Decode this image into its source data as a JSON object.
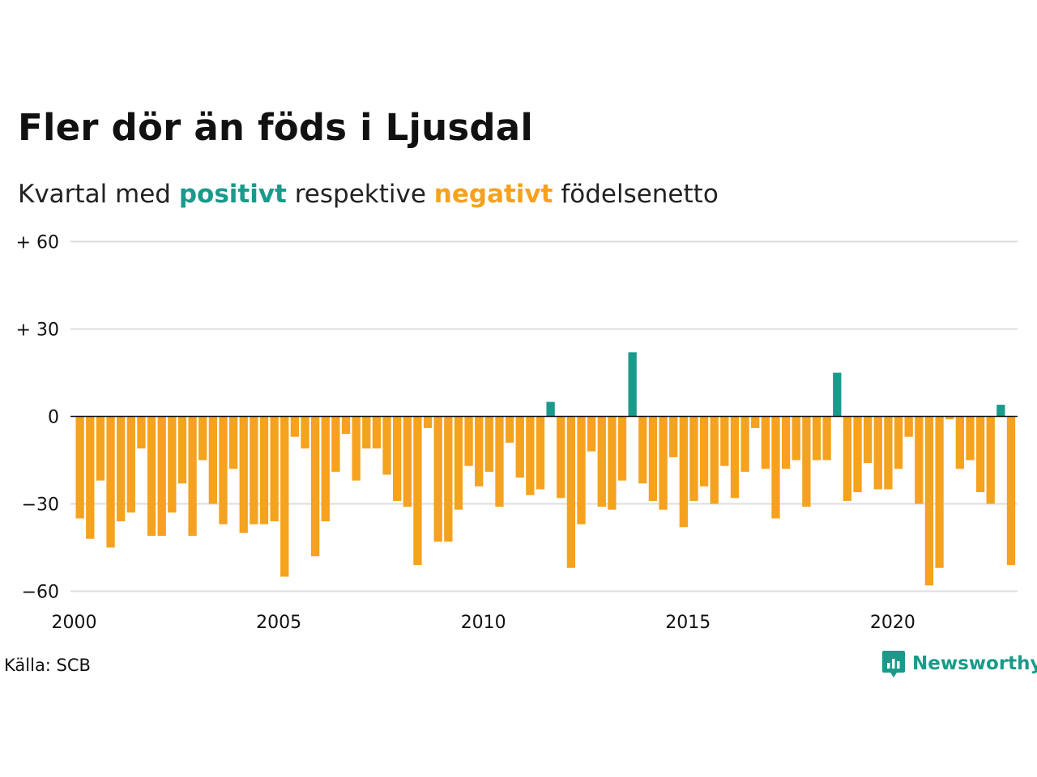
{
  "header": {
    "title": "Fler dör än föds i Ljusdal",
    "subtitle_prefix": "Kvartal med ",
    "subtitle_positive": "positivt",
    "subtitle_middle": " respektive ",
    "subtitle_negative": "negativt",
    "subtitle_suffix": " födelsenetto"
  },
  "footer": {
    "source": "Källa: SCB",
    "brand": "Newsworthy",
    "brand_icon": "newsworthy-logo-icon"
  },
  "colors": {
    "positive": "#1a9a8b",
    "negative": "#f5a21f",
    "grid": "#dddddd",
    "zero_line": "#111111"
  },
  "chart_data": {
    "type": "bar",
    "x_start": "2000 Q1",
    "x_step": "quarter",
    "y_ticks": [
      {
        "value": 60,
        "label": "+ 60"
      },
      {
        "value": 30,
        "label": "+ 30"
      },
      {
        "value": 0,
        "label": "0"
      },
      {
        "value": -30,
        "label": "−30"
      },
      {
        "value": -60,
        "label": "−60"
      }
    ],
    "x_ticks": [
      {
        "value": 2000,
        "label": "2000"
      },
      {
        "value": 2005,
        "label": "2005"
      },
      {
        "value": 2010,
        "label": "2010"
      },
      {
        "value": 2015,
        "label": "2015"
      },
      {
        "value": 2020,
        "label": "2020"
      }
    ],
    "ylim": [
      -60,
      60
    ],
    "grid": true,
    "values": [
      -35,
      -42,
      -22,
      -45,
      -36,
      -33,
      -11,
      -41,
      -41,
      -33,
      -23,
      -41,
      -15,
      -30,
      -37,
      -18,
      -40,
      -37,
      -37,
      -36,
      -55,
      -7,
      -11,
      -48,
      -36,
      -19,
      -6,
      -22,
      -11,
      -11,
      -20,
      -29,
      -31,
      -51,
      -4,
      -43,
      -43,
      -32,
      -17,
      -24,
      -19,
      -31,
      -9,
      -21,
      -27,
      -25,
      5,
      -28,
      -52,
      -37,
      -12,
      -31,
      -32,
      -22,
      22,
      -23,
      -29,
      -32,
      -14,
      -38,
      -29,
      -24,
      -30,
      -17,
      -28,
      -19,
      -4,
      -18,
      -35,
      -18,
      -15,
      -31,
      -15,
      -15,
      15,
      -29,
      -26,
      -16,
      -25,
      -25,
      -18,
      -7,
      -30,
      -58,
      -52,
      -1,
      -18,
      -15,
      -26,
      -30,
      4,
      -51
    ]
  }
}
